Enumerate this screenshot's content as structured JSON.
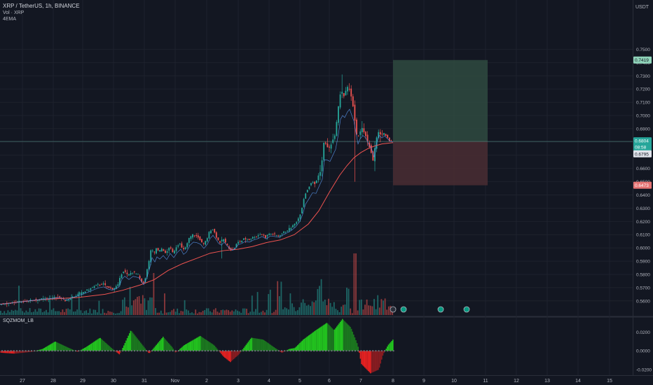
{
  "header": {
    "symbol_line": "XRP / TetherUS, 1h, BINANCE",
    "volume_line": "Vol · XRP",
    "ema_line": "4EMA"
  },
  "currency_label": "USDT",
  "colors": {
    "background": "#131722",
    "grid": "#1e222d",
    "up": "#26a69a",
    "down": "#ef5350",
    "ema": "#ef5350",
    "ema_fast": "#5b9cf6",
    "profit_zone": "#2f4a3f",
    "loss_zone": "#4a2d33",
    "osc_up": "#22c41e",
    "osc_down": "#e52121",
    "axis_text": "#b2b5be"
  },
  "chart_data": [
    {
      "type": "candlestick",
      "title": "XRP / TetherUS, 1h, BINANCE",
      "x_ticks": [
        "27",
        "28",
        "29",
        "30",
        "31",
        "Nov",
        "2",
        "3",
        "4",
        "5",
        "6",
        "7",
        "8",
        "9",
        "10",
        "11",
        "12",
        "13",
        "14",
        "15"
      ],
      "y_ticks": [
        "0.7500",
        "0.7400",
        "0.7300",
        "0.7200",
        "0.7100",
        "0.7000",
        "0.6900",
        "0.6800",
        "0.6700",
        "0.6600",
        "0.6500",
        "0.6400",
        "0.6300",
        "0.6200",
        "0.6100",
        "0.6000",
        "0.5900",
        "0.5800",
        "0.5700",
        "0.5600"
      ],
      "ylim": [
        0.5562,
        0.7645
      ],
      "grid": true,
      "price_path": [
        [
          0,
          0.5575
        ],
        [
          20,
          0.5585
        ],
        [
          40,
          0.56
        ],
        [
          60,
          0.5612
        ],
        [
          75,
          0.562
        ],
        [
          85,
          0.563
        ],
        [
          95,
          0.56
        ],
        [
          103,
          0.5625
        ],
        [
          110,
          0.564
        ],
        [
          118,
          0.566
        ],
        [
          126,
          0.568
        ],
        [
          133,
          0.57
        ],
        [
          140,
          0.572
        ],
        [
          148,
          0.573
        ],
        [
          155,
          0.57
        ],
        [
          160,
          0.569
        ],
        [
          165,
          0.57
        ],
        [
          170,
          0.572
        ],
        [
          174,
          0.58
        ],
        [
          178,
          0.583
        ],
        [
          184,
          0.579
        ],
        [
          190,
          0.582
        ],
        [
          198,
          0.58
        ],
        [
          205,
          0.572
        ],
        [
          209,
          0.578
        ],
        [
          214,
          0.59
        ],
        [
          217,
          0.6
        ],
        [
          221,
          0.595
        ],
        [
          224,
          0.6
        ],
        [
          228,
          0.597
        ],
        [
          233,
          0.6
        ],
        [
          238,
          0.595
        ],
        [
          243,
          0.601
        ],
        [
          248,
          0.596
        ],
        [
          253,
          0.601
        ],
        [
          258,
          0.604
        ],
        [
          262,
          0.598
        ],
        [
          266,
          0.6
        ],
        [
          271,
          0.607
        ],
        [
          276,
          0.61
        ],
        [
          281,
          0.609
        ],
        [
          286,
          0.607
        ],
        [
          291,
          0.602
        ],
        [
          296,
          0.606
        ],
        [
          300,
          0.612
        ],
        [
          304,
          0.615
        ],
        [
          308,
          0.611
        ],
        [
          312,
          0.606
        ],
        [
          316,
          0.604
        ],
        [
          320,
          0.607
        ],
        [
          324,
          0.603
        ],
        [
          328,
          0.6
        ],
        [
          332,
          0.598
        ],
        [
          336,
          0.6
        ],
        [
          340,
          0.604
        ],
        [
          345,
          0.605
        ],
        [
          350,
          0.607
        ],
        [
          356,
          0.606
        ],
        [
          362,
          0.608
        ],
        [
          368,
          0.609
        ],
        [
          374,
          0.611
        ],
        [
          380,
          0.608
        ],
        [
          386,
          0.611
        ],
        [
          392,
          0.61
        ],
        [
          398,
          0.609
        ],
        [
          404,
          0.611
        ],
        [
          410,
          0.613
        ],
        [
          416,
          0.615
        ],
        [
          422,
          0.618
        ],
        [
          428,
          0.623
        ],
        [
          432,
          0.63
        ],
        [
          436,
          0.64
        ],
        [
          441,
          0.645
        ],
        [
          446,
          0.65
        ],
        [
          451,
          0.648
        ],
        [
          456,
          0.655
        ],
        [
          460,
          0.66
        ],
        [
          463,
          0.68
        ],
        [
          467,
          0.678
        ],
        [
          471,
          0.675
        ],
        [
          475,
          0.68
        ],
        [
          479,
          0.685
        ],
        [
          483,
          0.7
        ],
        [
          486,
          0.715
        ],
        [
          489,
          0.718
        ],
        [
          492,
          0.715
        ],
        [
          496,
          0.72
        ],
        [
          499,
          0.722
        ],
        [
          502,
          0.715
        ],
        [
          505,
          0.708
        ],
        [
          508,
          0.695
        ],
        [
          511,
          0.682
        ],
        [
          514,
          0.687
        ],
        [
          518,
          0.69
        ],
        [
          522,
          0.687
        ],
        [
          526,
          0.68
        ],
        [
          530,
          0.675
        ],
        [
          534,
          0.665
        ],
        [
          537,
          0.678
        ],
        [
          541,
          0.688
        ],
        [
          545,
          0.685
        ],
        [
          549,
          0.687
        ],
        [
          553,
          0.684
        ],
        [
          557,
          0.681
        ],
        [
          561,
          0.6804
        ]
      ],
      "ema_path": [
        [
          0,
          0.5575
        ],
        [
          60,
          0.561
        ],
        [
          110,
          0.5625
        ],
        [
          150,
          0.565
        ],
        [
          175,
          0.568
        ],
        [
          200,
          0.572
        ],
        [
          220,
          0.576
        ],
        [
          240,
          0.583
        ],
        [
          260,
          0.588
        ],
        [
          280,
          0.592
        ],
        [
          300,
          0.596
        ],
        [
          320,
          0.598
        ],
        [
          340,
          0.599
        ],
        [
          360,
          0.601
        ],
        [
          380,
          0.604
        ],
        [
          400,
          0.606
        ],
        [
          420,
          0.61
        ],
        [
          440,
          0.618
        ],
        [
          455,
          0.628
        ],
        [
          470,
          0.642
        ],
        [
          485,
          0.655
        ],
        [
          495,
          0.662
        ],
        [
          505,
          0.668
        ],
        [
          515,
          0.672
        ],
        [
          525,
          0.675
        ],
        [
          535,
          0.677
        ],
        [
          545,
          0.6785
        ],
        [
          561,
          0.6795
        ]
      ],
      "price_labels": {
        "target": "0.7419",
        "current": "0.6804",
        "countdown": "08:58",
        "ema": "0.6795",
        "stop": "0.6473"
      },
      "position": {
        "entry": 0.6804,
        "target": 0.7419,
        "stop": 0.6473
      }
    },
    {
      "type": "bar",
      "title": "Vol · XRP"
    },
    {
      "type": "area",
      "title": "SQZMOM_LB",
      "y_ticks": [
        "0.0200",
        "0.0000",
        "-0.0200"
      ],
      "ylim": [
        -0.026,
        0.036
      ],
      "hump_points": [
        [
          0,
          -0.002
        ],
        [
          20,
          -0.003
        ],
        [
          45,
          -0.001
        ],
        [
          60,
          0.002
        ],
        [
          78,
          0.01
        ],
        [
          95,
          0.004
        ],
        [
          110,
          -0.001
        ],
        [
          122,
          0.004
        ],
        [
          142,
          0.014
        ],
        [
          160,
          0.002
        ],
        [
          170,
          -0.004
        ],
        [
          186,
          0.022
        ],
        [
          205,
          0.004
        ],
        [
          212,
          -0.003
        ],
        [
          232,
          0.015
        ],
        [
          245,
          0.004
        ],
        [
          250,
          -0.002
        ],
        [
          262,
          0.006
        ],
        [
          285,
          0.016
        ],
        [
          305,
          0.006
        ],
        [
          318,
          -0.006
        ],
        [
          328,
          -0.012
        ],
        [
          340,
          -0.004
        ],
        [
          358,
          0.014
        ],
        [
          375,
          0.012
        ],
        [
          392,
          0.003
        ],
        [
          402,
          -0.002
        ],
        [
          412,
          0.002
        ],
        [
          420,
          0.003
        ],
        [
          432,
          0.012
        ],
        [
          450,
          0.022
        ],
        [
          466,
          0.03
        ],
        [
          476,
          0.022
        ],
        [
          488,
          0.034
        ],
        [
          500,
          0.025
        ],
        [
          510,
          0.006
        ],
        [
          515,
          -0.014
        ],
        [
          528,
          -0.024
        ],
        [
          540,
          -0.02
        ],
        [
          546,
          -0.004
        ],
        [
          553,
          0.006
        ],
        [
          560,
          0.012
        ]
      ],
      "zero_line": 0
    }
  ],
  "x_axis_labels": [
    "27",
    "28",
    "29",
    "30",
    "31",
    "Nov",
    "2",
    "3",
    "4",
    "5",
    "6",
    "7",
    "8",
    "9",
    "10",
    "11",
    "12",
    "13",
    "14",
    "15"
  ]
}
